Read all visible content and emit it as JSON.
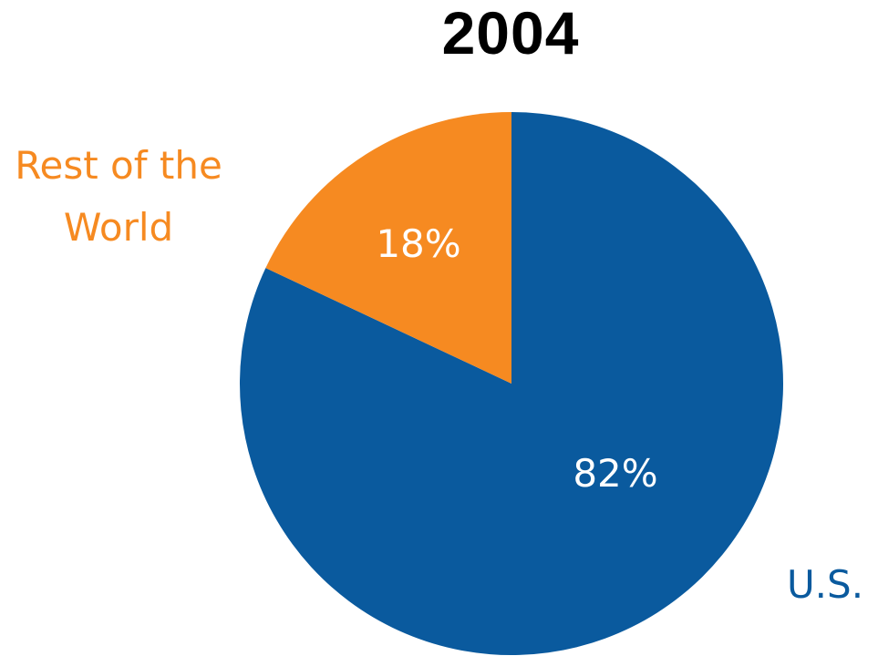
{
  "chart_data": {
    "type": "pie",
    "title": "2004",
    "slices": [
      {
        "label": "U.S.",
        "value": 82,
        "value_label": "82%",
        "color": "#0a5a9e"
      },
      {
        "label": "Rest of the World",
        "value": 18,
        "value_label": "18%",
        "color": "#f68a21",
        "label_lines": [
          "Rest of the",
          "World"
        ]
      }
    ],
    "start_angle_deg": 0,
    "direction": "clockwise",
    "legend": "labels placed outside slices"
  }
}
